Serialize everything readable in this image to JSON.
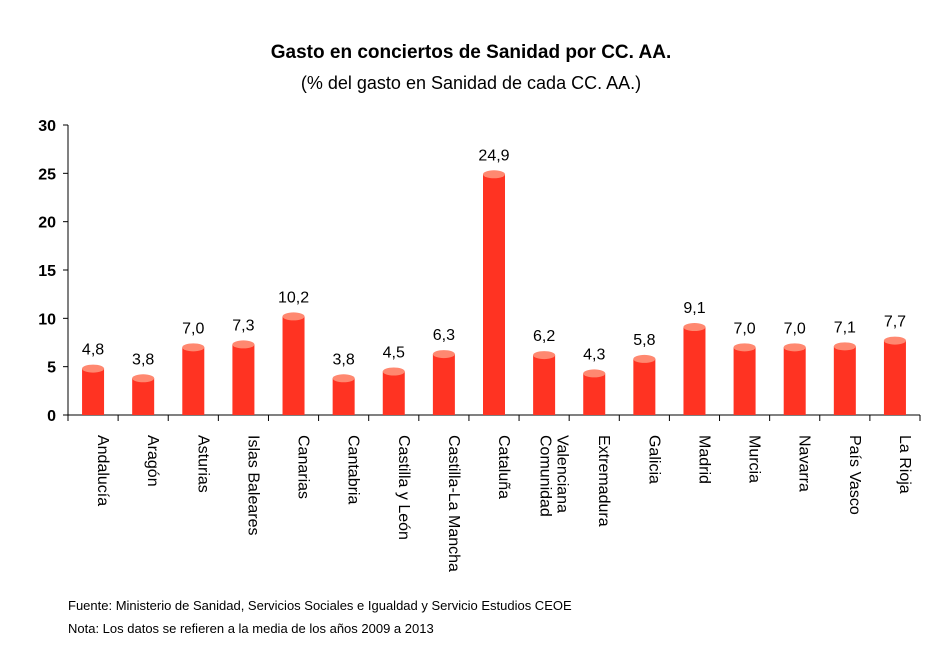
{
  "chart_data": {
    "type": "bar",
    "title": "Gasto en conciertos de Sanidad por CC. AA.",
    "subtitle": "(% del gasto en Sanidad de cada CC. AA.)",
    "xlabel": "",
    "ylabel": "",
    "ylim": [
      0,
      30
    ],
    "yticks": [
      0,
      5,
      10,
      15,
      20,
      25,
      30
    ],
    "categories": [
      [
        "Andalucía"
      ],
      [
        "Aragón"
      ],
      [
        "Asturias"
      ],
      [
        "Islas Baleares"
      ],
      [
        "Canarias"
      ],
      [
        "Cantabria"
      ],
      [
        "Castilla y León"
      ],
      [
        "Castilla-La Mancha"
      ],
      [
        "Cataluña"
      ],
      [
        "Comunidad",
        "Valenciana"
      ],
      [
        "Extremadura"
      ],
      [
        "Galicia"
      ],
      [
        "Madrid"
      ],
      [
        "Murcia"
      ],
      [
        "Navarra"
      ],
      [
        "País Vasco"
      ],
      [
        "La Rioja"
      ]
    ],
    "values": [
      4.8,
      3.8,
      7.0,
      7.3,
      10.2,
      3.8,
      4.5,
      6.3,
      24.9,
      6.2,
      4.3,
      5.8,
      9.1,
      7.0,
      7.0,
      7.1,
      7.7
    ],
    "value_labels": [
      "4,8",
      "3,8",
      "7,0",
      "7,3",
      "10,2",
      "3,8",
      "4,5",
      "6,3",
      "24,9",
      "6,2",
      "4,3",
      "5,8",
      "9,1",
      "7,0",
      "7,0",
      "7,1",
      "7,7"
    ],
    "bar_color": "#ff3322",
    "bar_top_color": "#ff8870"
  },
  "notes": {
    "source": "Fuente: Ministerio de Sanidad, Servicios Sociales e Igualdad y Servicio Estudios CEOE",
    "note": "Nota: Los datos se refieren a la media de los años 2009 a 2013"
  }
}
